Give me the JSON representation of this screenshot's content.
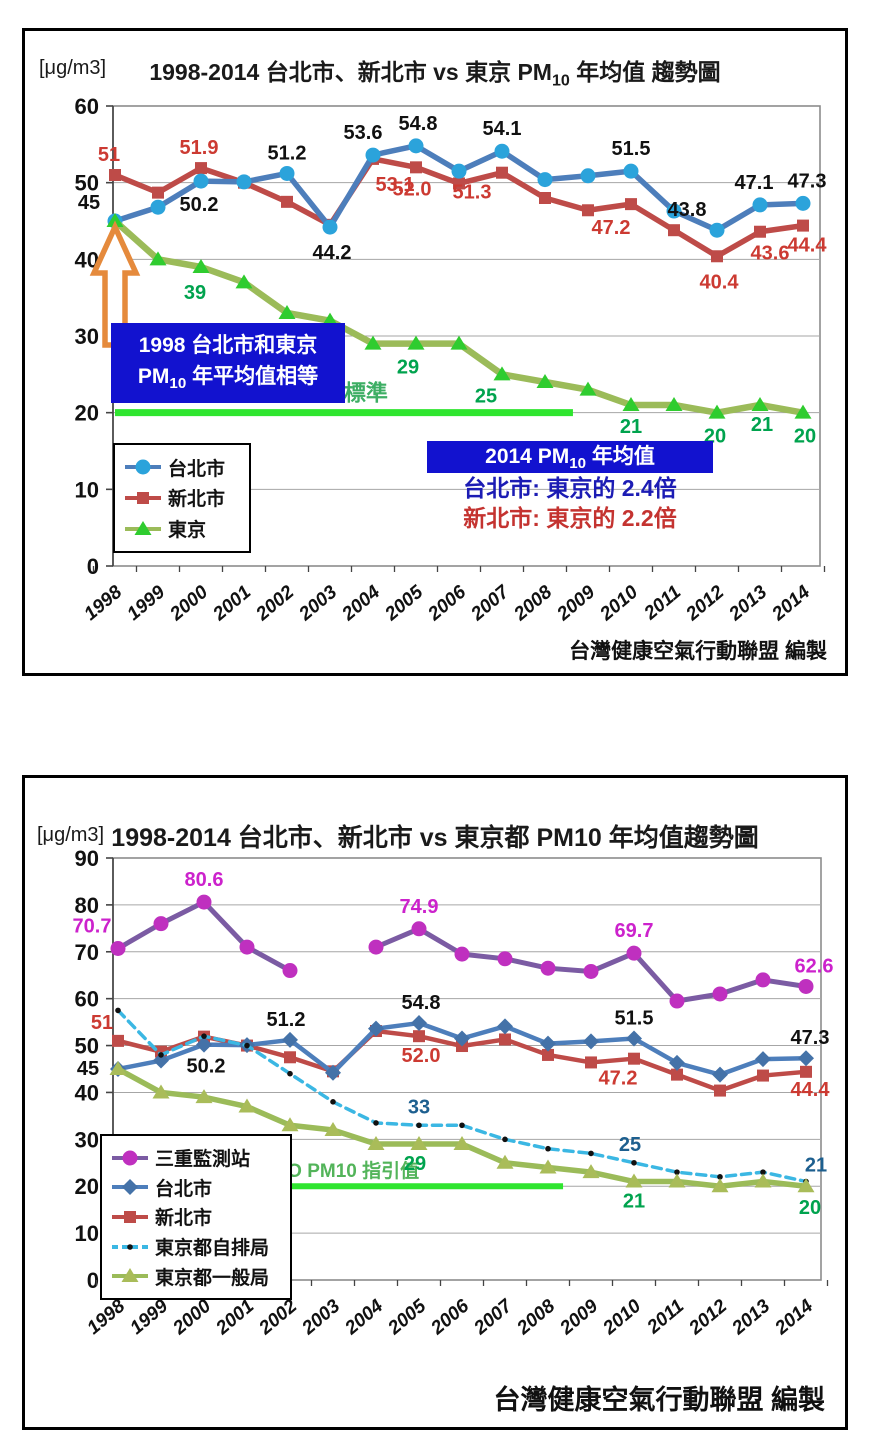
{
  "chart_data": [
    {
      "type": "line",
      "id": "top",
      "unit": "[μg/m3]",
      "title": {
        "prefix": "1998-2014 台北市、新北市 vs 東京  PM",
        "sub": "10",
        "suffix": " 年均值 趨勢圖"
      },
      "footer": "台灣健康空氣行動聯盟 編製",
      "ylim": [
        0,
        60
      ],
      "ytick_step": 10,
      "grid": true,
      "legend_position": "bottom-left-inside",
      "categories": [
        1998,
        1999,
        2000,
        2001,
        2002,
        2003,
        2004,
        2005,
        2006,
        2007,
        2008,
        2009,
        2010,
        2011,
        2012,
        2013,
        2014
      ],
      "draw_order": [
        1,
        0,
        2
      ],
      "series": [
        {
          "key": "taipei",
          "name": "台北市",
          "color": "#4d7ebb",
          "line_width": 5.5,
          "dash": null,
          "marker": "circle",
          "marker_color": "#2ba3db",
          "label_color": "#111111",
          "values": [
            45,
            46.8,
            50.2,
            50.1,
            51.2,
            44.2,
            53.6,
            54.8,
            51.5,
            54.1,
            50.4,
            50.9,
            51.5,
            46.3,
            43.8,
            47.1,
            47.3
          ],
          "point_labels": [
            {
              "i": 0,
              "t": "45",
              "dx": -26,
              "dy": -12
            },
            {
              "i": 2,
              "t": "50.2",
              "dx": -2,
              "dy": 30
            },
            {
              "i": 4,
              "t": "51.2",
              "dx": 0,
              "dy": -14
            },
            {
              "i": 5,
              "t": "44.2",
              "dx": 2,
              "dy": 32
            },
            {
              "i": 6,
              "t": "53.6",
              "dx": -10,
              "dy": -16
            },
            {
              "i": 7,
              "t": "54.8",
              "dx": 2,
              "dy": -16
            },
            {
              "i": 9,
              "t": "54.1",
              "dx": 0,
              "dy": -16
            },
            {
              "i": 12,
              "t": "51.5",
              "dx": 0,
              "dy": -16
            },
            {
              "i": 14,
              "t": "43.8",
              "dx": -30,
              "dy": -14
            },
            {
              "i": 15,
              "t": "47.1",
              "dx": -6,
              "dy": -16
            },
            {
              "i": 16,
              "t": "47.3",
              "dx": 4,
              "dy": -16
            }
          ]
        },
        {
          "key": "xinbei",
          "name": "新北市",
          "color": "#be4b48",
          "line_width": 5.5,
          "dash": null,
          "marker": "square",
          "marker_color": "#be4b48",
          "label_color": "#cc3a32",
          "values": [
            51,
            48.7,
            51.9,
            50.0,
            47.5,
            44.5,
            53.1,
            52.0,
            49.9,
            51.3,
            48.0,
            46.4,
            47.2,
            43.8,
            40.4,
            43.6,
            44.4
          ],
          "point_labels": [
            {
              "i": 0,
              "t": "51",
              "dx": -6,
              "dy": -14
            },
            {
              "i": 2,
              "t": "51.9",
              "dx": -2,
              "dy": -14
            },
            {
              "i": 6,
              "t": "53.1",
              "dx": 22,
              "dy": 32
            },
            {
              "i": 7,
              "t": "52.0",
              "dx": -4,
              "dy": 28
            },
            {
              "i": 9,
              "t": "51.3",
              "dx": -30,
              "dy": 26
            },
            {
              "i": 12,
              "t": "47.2",
              "dx": -20,
              "dy": 30
            },
            {
              "i": 14,
              "t": "40.4",
              "dx": 2,
              "dy": 32
            },
            {
              "i": 15,
              "t": "43.6",
              "dx": 10,
              "dy": 28
            },
            {
              "i": 16,
              "t": "44.4",
              "dx": 4,
              "dy": 26
            }
          ]
        },
        {
          "key": "tokyo",
          "name": "東京",
          "color": "#9bbb59",
          "line_width": 6.5,
          "dash": null,
          "marker": "triangle",
          "marker_color": "#2fcc2f",
          "label_color": "#00a34e",
          "values": [
            45,
            40,
            39,
            37,
            33,
            32,
            29,
            29,
            29,
            25,
            24,
            23,
            21,
            21,
            20,
            21,
            20
          ],
          "point_labels": [
            {
              "i": 2,
              "t": "39",
              "dx": -6,
              "dy": 32
            },
            {
              "i": 5,
              "t": "32",
              "dx": -30,
              "dy": 22
            },
            {
              "i": 7,
              "t": "29",
              "dx": -8,
              "dy": 30
            },
            {
              "i": 9,
              "t": "25",
              "dx": -16,
              "dy": 28
            },
            {
              "i": 12,
              "t": "21",
              "dx": 0,
              "dy": 28
            },
            {
              "i": 14,
              "t": "20",
              "dx": -2,
              "dy": 30
            },
            {
              "i": 15,
              "t": "21",
              "dx": 2,
              "dy": 26
            },
            {
              "i": 16,
              "t": "20",
              "dx": 2,
              "dy": 30
            }
          ]
        }
      ],
      "who_line": {
        "value": 20,
        "x_from": 0,
        "x_to": 10.65,
        "color": "#2fe52f",
        "width": 7,
        "label": "WHO PM10 標準",
        "label_color": "#3dae64",
        "label_x": 4.4,
        "label_dy": -12
      },
      "notes": {
        "equal_line1": "1998 台北市和東京",
        "equal_line2_prefix": "PM",
        "equal_line2_sub": "10",
        "equal_line2_suffix": " 年平均值相等",
        "arrow_color": "#e58a3c",
        "y2014_header_prefix": "2014  PM",
        "y2014_header_sub": "10",
        "y2014_header_suffix": " 年均值",
        "ratio_taipei": "台北市: 東京的 2.4倍",
        "ratio_xinbei": "新北市: 東京的 2.2倍"
      }
    },
    {
      "type": "line",
      "id": "bottom",
      "unit": "[μg/m3]",
      "title": {
        "prefix": "1998-2014 台北市、新北市 vs 東京都 PM10 年均值趨勢圖",
        "sub": "",
        "suffix": ""
      },
      "footer": "台灣健康空氣行動聯盟 編製",
      "ylim": [
        0,
        90
      ],
      "ytick_step": 10,
      "grid": true,
      "legend_position": "bottom-left-inside",
      "categories": [
        1998,
        1999,
        2000,
        2001,
        2002,
        2003,
        2004,
        2005,
        2006,
        2007,
        2008,
        2009,
        2010,
        2011,
        2012,
        2013,
        2014
      ],
      "draw_order": [
        0,
        2,
        1,
        3,
        4
      ],
      "series": [
        {
          "key": "sanchong",
          "name": "三重監測站",
          "color": "#7b5ba3",
          "line_width": 5,
          "dash": null,
          "marker": "circle",
          "marker_color": "#bf30bf",
          "label_color": "#cc22cc",
          "values": [
            70.7,
            76,
            80.6,
            71,
            66,
            null,
            71,
            74.9,
            69.5,
            68.5,
            66.5,
            65.8,
            69.7,
            59.5,
            61,
            64,
            62.6
          ],
          "point_labels": [
            {
              "i": 0,
              "t": "70.7",
              "dx": -26,
              "dy": -16
            },
            {
              "i": 2,
              "t": "80.6",
              "dx": 0,
              "dy": -16
            },
            {
              "i": 7,
              "t": "74.9",
              "dx": 0,
              "dy": -16
            },
            {
              "i": 12,
              "t": "69.7",
              "dx": 0,
              "dy": -16
            },
            {
              "i": 16,
              "t": "62.6",
              "dx": 8,
              "dy": -14
            }
          ]
        },
        {
          "key": "taipei",
          "name": "台北市",
          "color": "#4d7ebb",
          "line_width": 4.5,
          "dash": null,
          "marker": "diamond",
          "marker_color": "#4472a8",
          "label_color": "#111111",
          "values": [
            45,
            46.8,
            50.2,
            50.1,
            51.2,
            44.2,
            53.6,
            54.8,
            51.5,
            54.1,
            50.4,
            50.9,
            51.5,
            46.3,
            43.8,
            47.1,
            47.3
          ],
          "point_labels": [
            {
              "i": 0,
              "t": "45",
              "dx": -30,
              "dy": 6
            },
            {
              "i": 2,
              "t": "50.2",
              "dx": 2,
              "dy": 28
            },
            {
              "i": 4,
              "t": "51.2",
              "dx": -4,
              "dy": -14
            },
            {
              "i": 7,
              "t": "54.8",
              "dx": 2,
              "dy": -14
            },
            {
              "i": 12,
              "t": "51.5",
              "dx": 0,
              "dy": -14
            },
            {
              "i": 16,
              "t": "47.3",
              "dx": 4,
              "dy": -14
            }
          ]
        },
        {
          "key": "xinbei",
          "name": "新北市",
          "color": "#be4b48",
          "line_width": 4.5,
          "dash": null,
          "marker": "square",
          "marker_color": "#be4b48",
          "label_color": "#cc3a32",
          "values": [
            51,
            48.7,
            51.9,
            50.0,
            47.5,
            44.5,
            53.1,
            52.0,
            49.9,
            51.3,
            48.0,
            46.4,
            47.2,
            43.8,
            40.4,
            43.6,
            44.4
          ],
          "point_labels": [
            {
              "i": 0,
              "t": "51",
              "dx": -16,
              "dy": -12
            },
            {
              "i": 7,
              "t": "52.0",
              "dx": 2,
              "dy": 26
            },
            {
              "i": 12,
              "t": "47.2",
              "dx": -16,
              "dy": 26
            },
            {
              "i": 16,
              "t": "44.4",
              "dx": 4,
              "dy": 24
            }
          ]
        },
        {
          "key": "tokyo-auto",
          "name": "東京都自排局",
          "color": "#3bb7e3",
          "line_width": 3.5,
          "dash": "9 6",
          "marker": "dot",
          "marker_color": "#111111",
          "label_color": "#1d5f8f",
          "values": [
            57.5,
            48,
            52,
            50,
            44,
            38,
            33.5,
            33,
            33,
            30,
            28,
            27,
            25,
            23,
            22,
            23,
            21
          ],
          "point_labels": [
            {
              "i": 7,
              "t": "33",
              "dx": 0,
              "dy": -12
            },
            {
              "i": 12,
              "t": "25",
              "dx": -4,
              "dy": -12
            },
            {
              "i": 16,
              "t": "21",
              "dx": 10,
              "dy": -10
            }
          ]
        },
        {
          "key": "tokyo-general",
          "name": "東京都一般局",
          "color": "#9bbb59",
          "line_width": 5.5,
          "dash": null,
          "marker": "triangle",
          "marker_color": "#a9bc59",
          "label_color": "#00a34e",
          "values": [
            45,
            40,
            39,
            37,
            33,
            32,
            29,
            29,
            29,
            25,
            24,
            23,
            21,
            21,
            20,
            21,
            20
          ],
          "point_labels": [
            {
              "i": 7,
              "t": "29",
              "dx": -4,
              "dy": 26
            },
            {
              "i": 12,
              "t": "21",
              "dx": 0,
              "dy": 26
            },
            {
              "i": 16,
              "t": "20",
              "dx": 4,
              "dy": 28
            }
          ]
        }
      ],
      "who_line": {
        "value": 20,
        "x_from": 3.33,
        "x_to": 10.35,
        "color": "#2fe52f",
        "width": 6,
        "label": "WHO PM10 指引值",
        "label_color": "#53b45a",
        "label_x": 5.1,
        "label_dy": -9
      }
    }
  ]
}
